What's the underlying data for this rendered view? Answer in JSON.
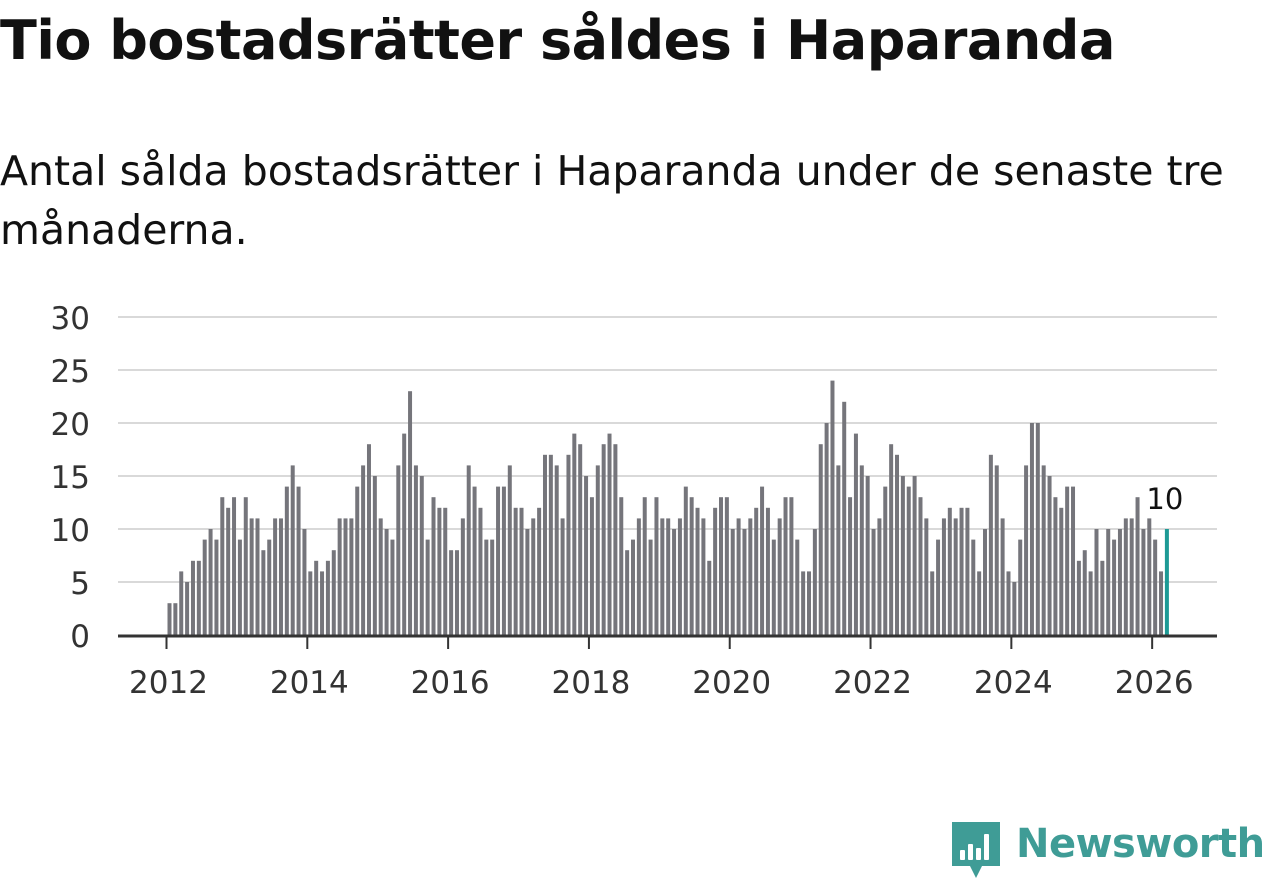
{
  "title": "Tio bostadsrätter såldes i Haparanda",
  "subtitle": "Antal sålda bostadsrätter i Haparanda under de senaste tre månaderna.",
  "brand": {
    "name": "Newsworthy",
    "icon": "newsworthy-logo-icon"
  },
  "colors": {
    "bar": "#75757b",
    "highlight": "#1d9a95",
    "grid": "#d9d9d9",
    "axis": "#333333",
    "text": "#333333",
    "brand": "#3f9c96"
  },
  "chart_data": {
    "type": "bar",
    "title": "Tio bostadsrätter såldes i Haparanda",
    "xlabel": "",
    "ylabel": "",
    "ylim": [
      0,
      30
    ],
    "yticks": [
      0,
      5,
      10,
      15,
      20,
      25,
      30
    ],
    "xticks": [
      "2012",
      "2014",
      "2016",
      "2018",
      "2020",
      "2022",
      "2024",
      "2026"
    ],
    "start": "2012-01",
    "frequency": "monthly",
    "grid": true,
    "legend": "none",
    "values": [
      3,
      3,
      6,
      5,
      7,
      7,
      9,
      10,
      9,
      13,
      12,
      13,
      9,
      13,
      11,
      11,
      8,
      9,
      11,
      11,
      14,
      16,
      14,
      10,
      6,
      7,
      6,
      7,
      8,
      11,
      11,
      11,
      14,
      16,
      18,
      15,
      11,
      10,
      9,
      16,
      19,
      23,
      16,
      15,
      9,
      13,
      12,
      12,
      8,
      8,
      11,
      16,
      14,
      12,
      9,
      9,
      14,
      14,
      16,
      12,
      12,
      10,
      11,
      12,
      17,
      17,
      16,
      11,
      17,
      19,
      18,
      15,
      13,
      16,
      18,
      19,
      18,
      13,
      8,
      9,
      11,
      13,
      9,
      13,
      11,
      11,
      10,
      11,
      14,
      13,
      12,
      11,
      7,
      12,
      13,
      13,
      10,
      11,
      10,
      11,
      12,
      14,
      12,
      9,
      11,
      13,
      13,
      9,
      6,
      6,
      10,
      18,
      20,
      24,
      16,
      22,
      13,
      19,
      16,
      15,
      10,
      11,
      14,
      18,
      17,
      15,
      14,
      15,
      13,
      11,
      6,
      9,
      11,
      12,
      11,
      12,
      12,
      9,
      6,
      10,
      17,
      16,
      11,
      6,
      5,
      9,
      16,
      20,
      20,
      16,
      15,
      13,
      12,
      14,
      14,
      7,
      8,
      6,
      10,
      7,
      10,
      9,
      10,
      11,
      11,
      13,
      10,
      11,
      9,
      6,
      10
    ],
    "highlight": {
      "label": "10",
      "value": 10
    }
  }
}
